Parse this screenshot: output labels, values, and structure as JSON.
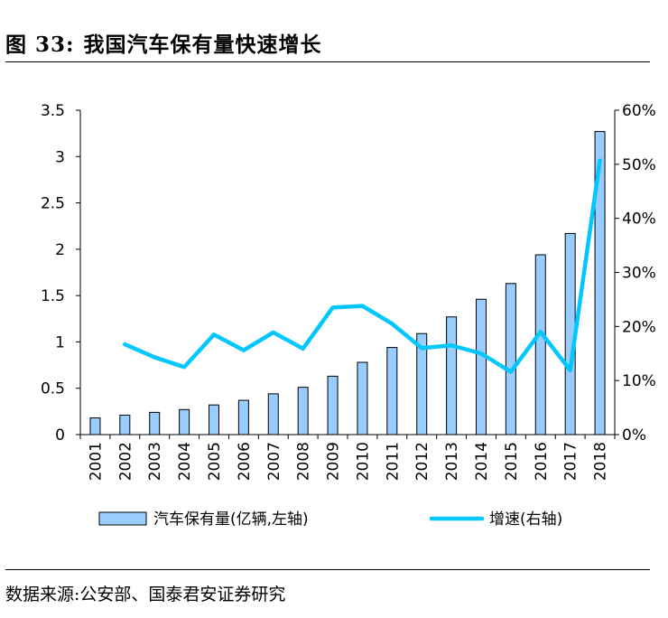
{
  "header": {
    "figure_label": "图 33:",
    "title": "我国汽车保有量快速增长"
  },
  "footer": {
    "source": "数据来源:公安部、国泰君安证券研究"
  },
  "chart_data": {
    "type": "bar",
    "title": "我国汽车保有量快速增长",
    "categories": [
      "2001",
      "2002",
      "2003",
      "2004",
      "2005",
      "2006",
      "2007",
      "2008",
      "2009",
      "2010",
      "2011",
      "2012",
      "2013",
      "2014",
      "2015",
      "2016",
      "2017",
      "2018"
    ],
    "series": [
      {
        "name": "汽车保有量(亿辆,左轴)",
        "type": "bar",
        "axis": "left",
        "color": "#99ccff",
        "values": [
          0.18,
          0.21,
          0.24,
          0.27,
          0.32,
          0.37,
          0.44,
          0.51,
          0.63,
          0.78,
          0.94,
          1.09,
          1.27,
          1.46,
          1.63,
          1.94,
          2.17,
          3.27
        ]
      },
      {
        "name": "增速(右轴)",
        "type": "line",
        "axis": "right",
        "color": "#00c8ff",
        "values": [
          null,
          16.7,
          14.3,
          12.5,
          18.5,
          15.6,
          18.9,
          15.9,
          23.5,
          23.8,
          20.5,
          16.0,
          16.5,
          15.0,
          11.6,
          19.0,
          11.9,
          50.7
        ]
      }
    ],
    "left_axis": {
      "min": 0,
      "max": 3.5,
      "ticks": [
        "0",
        "0.5",
        "1",
        "1.5",
        "2",
        "2.5",
        "3",
        "3.5"
      ]
    },
    "right_axis": {
      "min": 0,
      "max": 60,
      "ticks": [
        "0%",
        "10%",
        "20%",
        "30%",
        "40%",
        "50%",
        "60%"
      ]
    },
    "legend_position": "bottom"
  }
}
